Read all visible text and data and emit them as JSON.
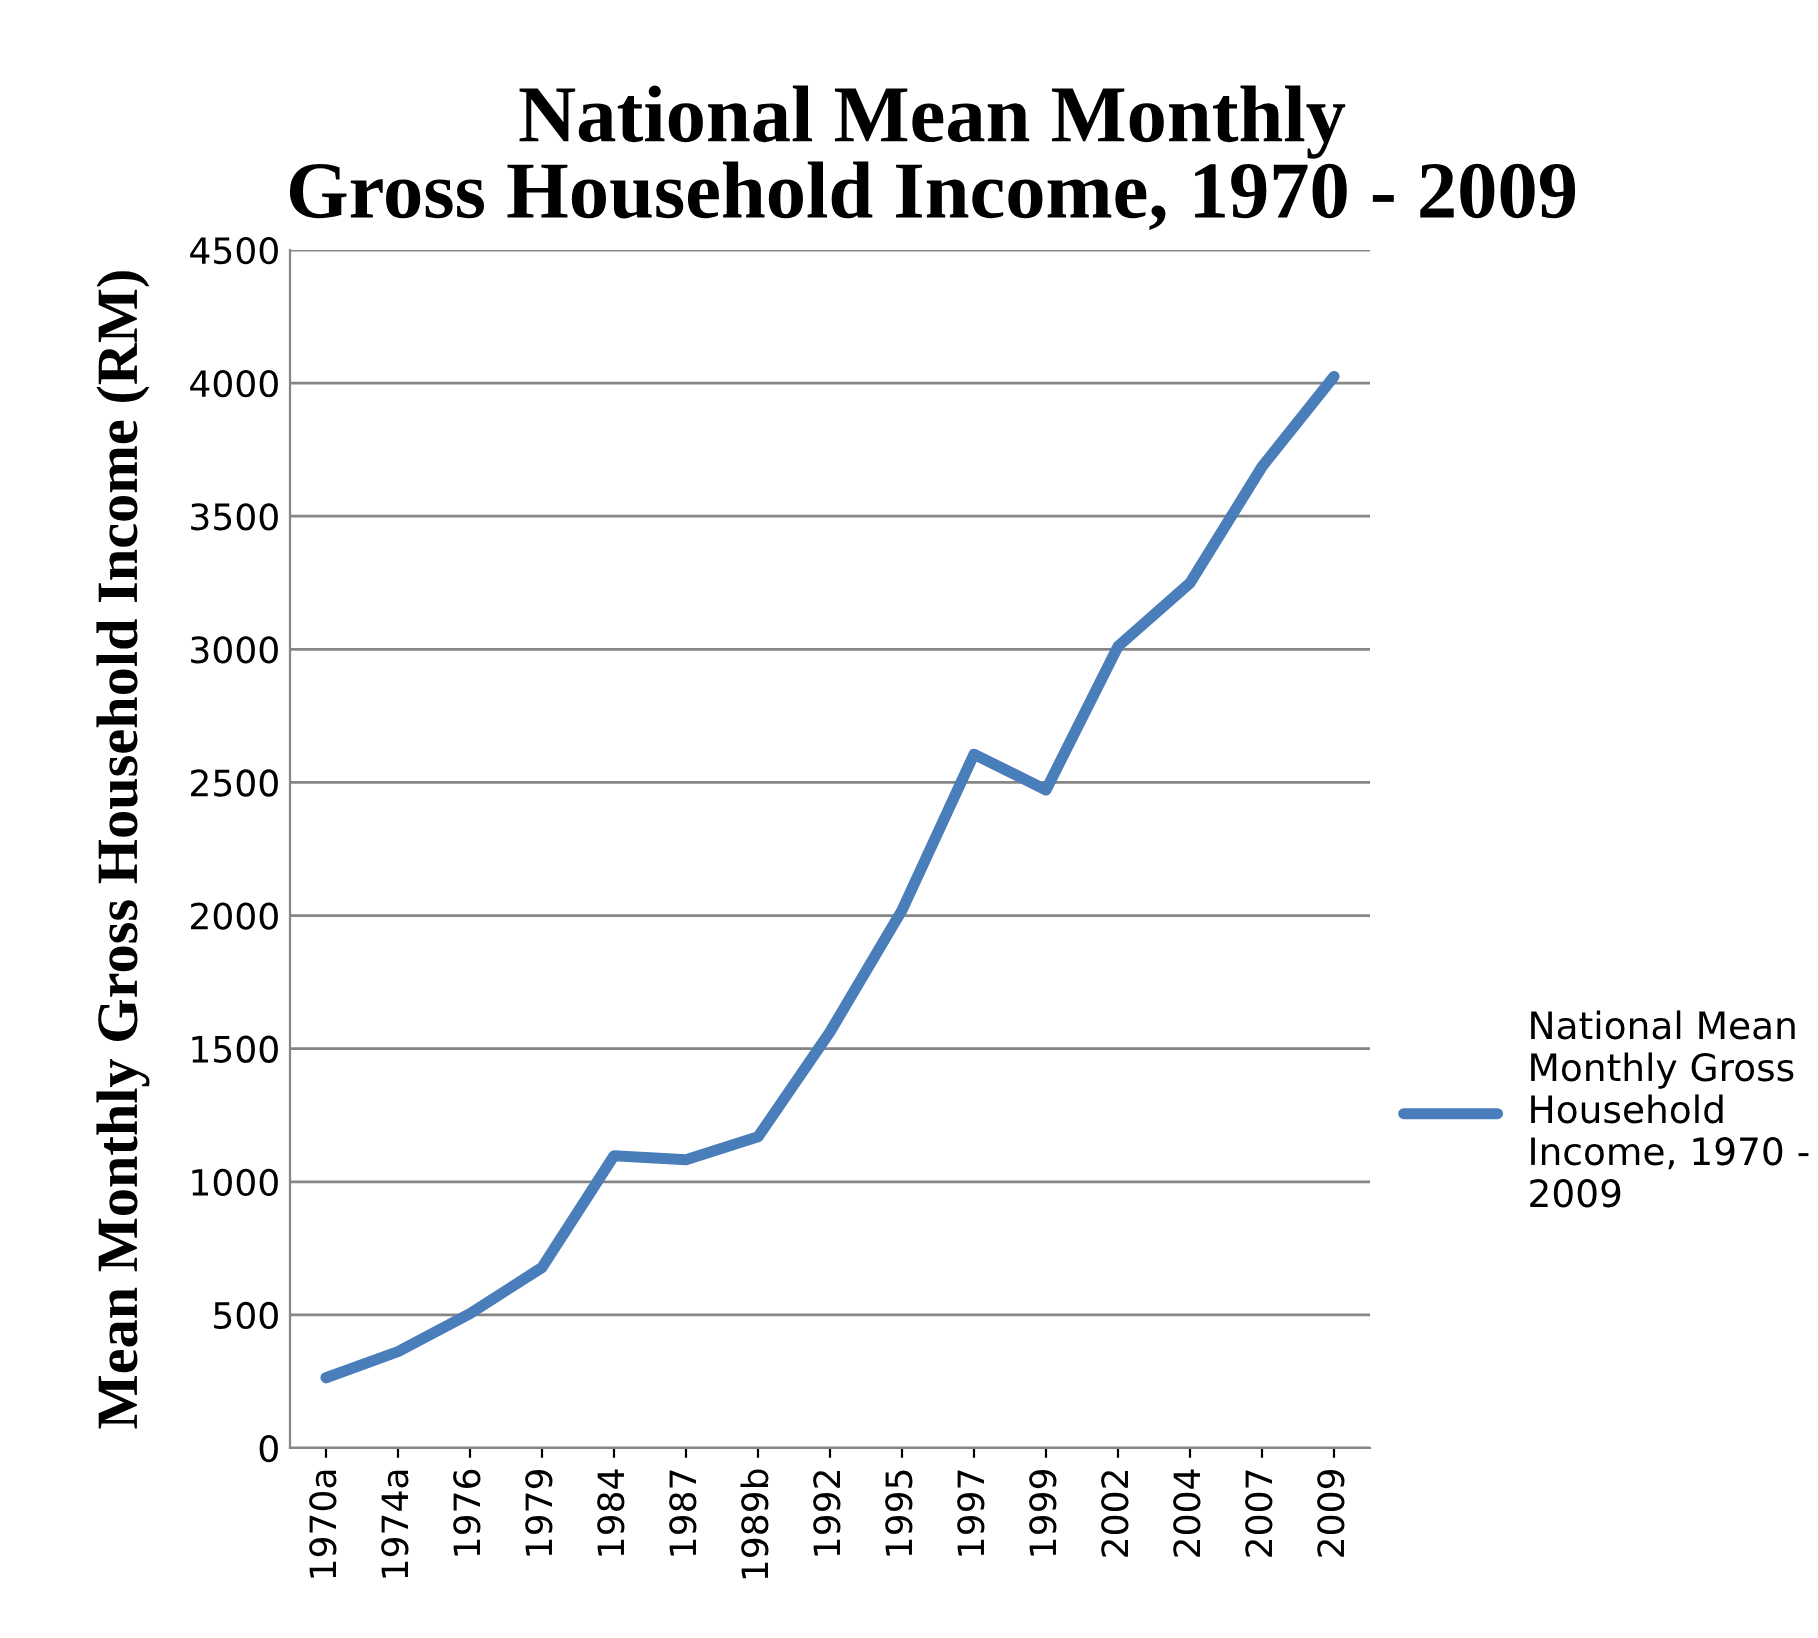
{
  "chart_data": {
    "type": "line",
    "title": "National Mean Monthly\nGross Household Income, 1970 - 2009",
    "ylabel": "Mean Monthly Gross Household Income (RM)",
    "categories": [
      "1970a",
      "1974a",
      "1976",
      "1979",
      "1984",
      "1987",
      "1989b",
      "1992",
      "1995",
      "1997",
      "1999",
      "2002",
      "2004",
      "2007",
      "2009"
    ],
    "series": [
      {
        "name": "National Mean Monthly Gross Household Income, 1970 - 2009",
        "color": "#4a7ebb",
        "values": [
          264,
          362,
          505,
          678,
          1098,
          1083,
          1169,
          1563,
          2020,
          2606,
          2472,
          3011,
          3249,
          3686,
          4025
        ]
      }
    ],
    "ylim": [
      0,
      4500
    ],
    "yticks": [
      0,
      500,
      1000,
      1500,
      2000,
      2500,
      3000,
      3500,
      4000,
      4500
    ],
    "grid": "y",
    "legend": "right",
    "marker": "none",
    "line_style": "solid"
  }
}
